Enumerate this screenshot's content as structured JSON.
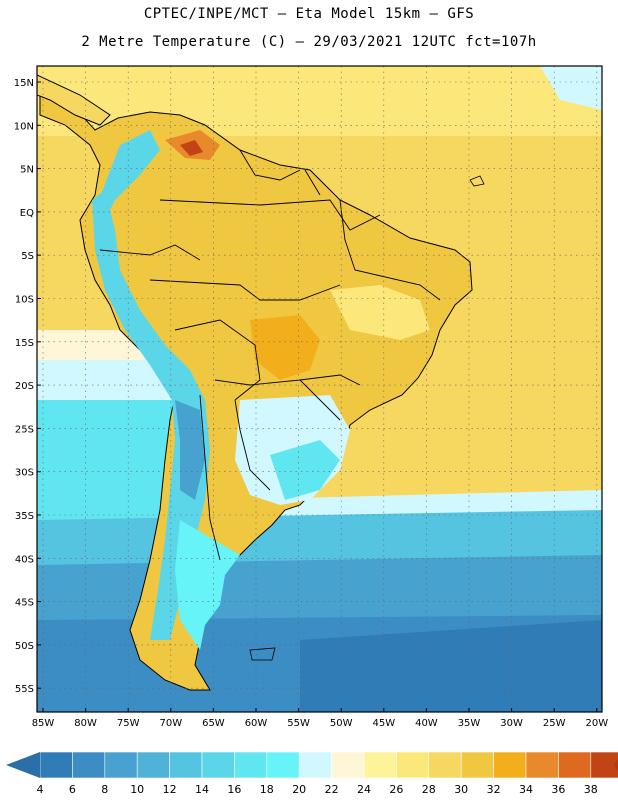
{
  "header": {
    "title_line1": "CPTEC/INPE/MCT –  Eta Model 15km – GFS",
    "title_line2": "2 Metre Temperature (C) – 29/03/2021 12UTC fct=107h"
  },
  "map": {
    "lat_labels": [
      "15N",
      "10N",
      "5N",
      "EQ",
      "5S",
      "10S",
      "15S",
      "20S",
      "25S",
      "30S",
      "35S",
      "40S",
      "45S",
      "50S",
      "55S"
    ],
    "lon_labels": [
      "85W",
      "80W",
      "75W",
      "70W",
      "65W",
      "60W",
      "55W",
      "50W",
      "45W",
      "40W",
      "35W",
      "30W",
      "25W",
      "20W"
    ]
  },
  "colorbar": {
    "values": [
      "4",
      "6",
      "8",
      "10",
      "12",
      "14",
      "16",
      "18",
      "20",
      "22",
      "24",
      "26",
      "28",
      "30",
      "32",
      "34",
      "36",
      "38"
    ],
    "colors": [
      "#2f7cb6",
      "#3b8dc4",
      "#47a2cf",
      "#4fb3d8",
      "#55c4e0",
      "#5bd6e8",
      "#60e6f0",
      "#67f4f8",
      "#d2f8ff",
      "#fff6d8",
      "#fff39a",
      "#fce77a",
      "#f6d860",
      "#efc741",
      "#f2ae1b",
      "#e8892b",
      "#dd6a1f",
      "#c24414"
    ],
    "left_arrow_color": "#2b6fa8",
    "right_arrow_color": "#b53a10"
  },
  "field_colors": {
    "ocean_north": "#f6d860",
    "ocean_south_cold": "#3b8dc4",
    "continent_warm": "#efc741",
    "andes_cold": "#5bd6e8"
  }
}
